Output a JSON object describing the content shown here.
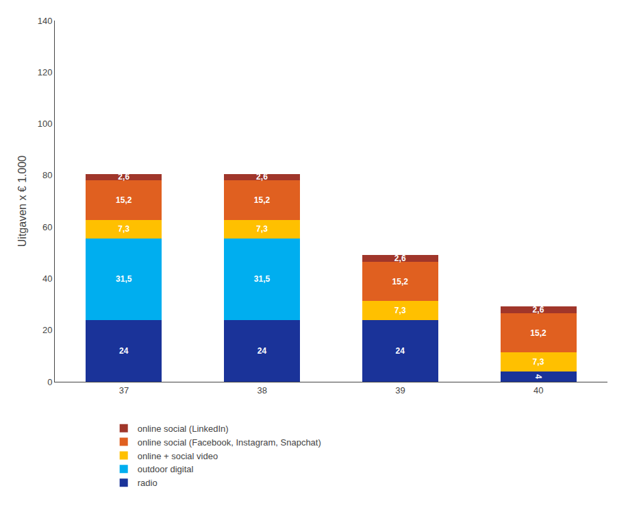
{
  "chart_data": {
    "type": "bar",
    "stacked": true,
    "data_labels": true,
    "categories": [
      "37",
      "38",
      "39",
      "40"
    ],
    "series": [
      {
        "name": "radio",
        "color": "#1a3399",
        "values": [
          24,
          24,
          24,
          4
        ],
        "value_labels": [
          "24",
          "24",
          "24",
          "4"
        ]
      },
      {
        "name": "outdoor digital",
        "color": "#00aeef",
        "values": [
          31.5,
          31.5,
          0,
          0
        ],
        "value_labels": [
          "31,5",
          "31,5",
          null,
          null
        ]
      },
      {
        "name": "online + social video",
        "color": "#ffc000",
        "values": [
          7.3,
          7.3,
          7.3,
          7.3
        ],
        "value_labels": [
          "7,3",
          "7,3",
          "7,3",
          "7,3"
        ]
      },
      {
        "name": "online social (Facebook, Instagram, Snapchat)",
        "color": "#e06020",
        "values": [
          15.2,
          15.2,
          15.2,
          15.2
        ],
        "value_labels": [
          "15,2",
          "15,2",
          "15,2",
          "15,2"
        ]
      },
      {
        "name": "online social (LinkedIn)",
        "color": "#a0362a",
        "values": [
          2.6,
          2.6,
          2.6,
          2.6
        ],
        "value_labels": [
          "2,6",
          "2,6",
          "2,6",
          "2,6"
        ]
      }
    ],
    "ylabel": "Uitgaven x € 1.000",
    "ylim": [
      0,
      140
    ],
    "yticks": [
      0,
      20,
      40,
      60,
      80,
      100,
      120,
      140
    ],
    "grid": false,
    "legend": "bottom"
  }
}
